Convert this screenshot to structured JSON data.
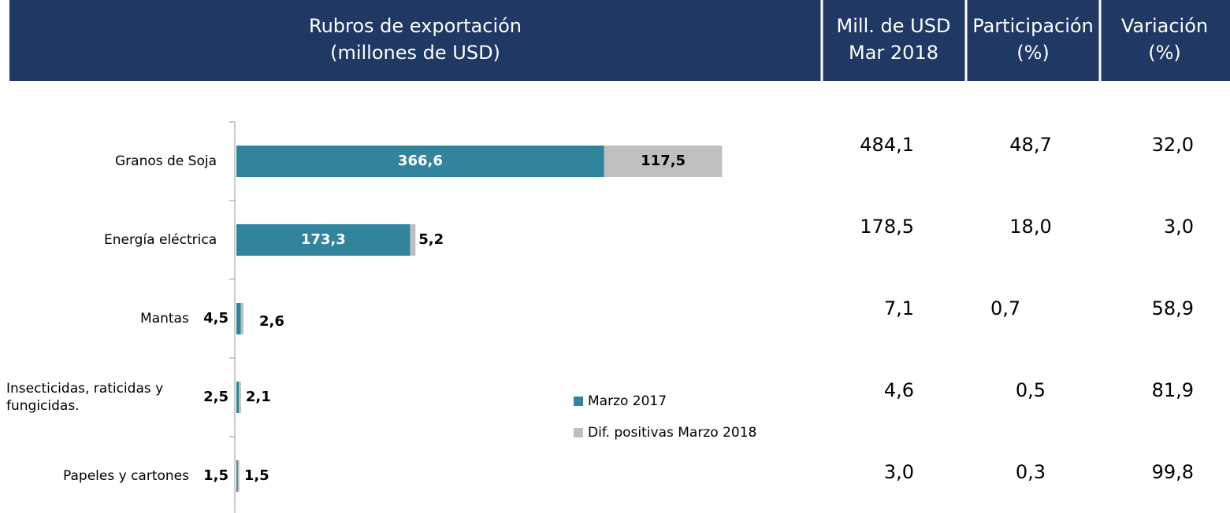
{
  "header": {
    "chart_title": [
      "Rubros de exportación",
      "(millones de USD)"
    ],
    "columns": [
      [
        "Mill. de USD",
        "Mar 2018"
      ],
      [
        "Participación",
        "(%)"
      ],
      [
        "Variación",
        "(%)"
      ]
    ]
  },
  "chart_data": {
    "type": "bar",
    "orientation": "horizontal",
    "stacked": true,
    "categories": [
      "Granos de Soja",
      "Energía eléctrica",
      "Mantas",
      "Insecticidas, raticidas y fungicidas.",
      "Papeles y cartones"
    ],
    "series": [
      {
        "name": "Marzo 2017",
        "color": "#31849b",
        "values": [
          366.6,
          173.3,
          4.5,
          2.5,
          1.5
        ],
        "value_labels": [
          "366,6",
          "173,3",
          "4,5",
          "2,5",
          "1,5"
        ]
      },
      {
        "name": "Dif. positivas Marzo 2018",
        "color": "#bfbfbf",
        "values": [
          117.5,
          5.2,
          2.6,
          2.1,
          1.5
        ],
        "value_labels": [
          "117,5",
          "5,2",
          "2,6",
          "2,1",
          "1,5"
        ]
      }
    ],
    "xlim": [
      0,
      600
    ]
  },
  "table": {
    "rows": [
      [
        "484,1",
        "48,7",
        "32,0"
      ],
      [
        "178,5",
        "18,0",
        "3,0"
      ],
      [
        "7,1",
        "0,7",
        "58,9"
      ],
      [
        "4,6",
        "0,5",
        "81,9"
      ],
      [
        "3,0",
        "0,3",
        "99,8"
      ]
    ]
  }
}
